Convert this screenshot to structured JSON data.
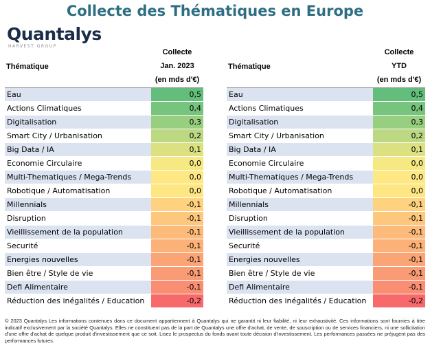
{
  "title": "Collecte des Thématiques en Europe",
  "logo": {
    "wordmark": "Quantalys",
    "subline": "HARVEST GROUP"
  },
  "tables": [
    {
      "theme_header": "Thématique",
      "value_header": [
        "Collecte",
        "Jan. 2023",
        "(en mds d'€)"
      ]
    },
    {
      "theme_header": "Thématique",
      "value_header": [
        "Collecte",
        "YTD",
        "(en mds d'€)"
      ]
    }
  ],
  "chart_data": [
    {
      "type": "table",
      "columns": [
        "Thématique",
        "Collecte Jan. 2023 (en mds d'€)"
      ],
      "rows": [
        [
          "Eau",
          "0,5"
        ],
        [
          "Actions Climatiques",
          "0,4"
        ],
        [
          "Digitalisation",
          "0,3"
        ],
        [
          "Smart City / Urbanisation",
          "0,2"
        ],
        [
          "Big Data / IA",
          "0,1"
        ],
        [
          "Economie Circulaire",
          "0,0"
        ],
        [
          "Multi-Thematiques / Mega-Trends",
          "0,0"
        ],
        [
          "Robotique / Automatisation",
          "0,0"
        ],
        [
          "Millennials",
          "-0,1"
        ],
        [
          "Disruption",
          "-0,1"
        ],
        [
          "Vieillissement de la population",
          "-0,1"
        ],
        [
          "Securité",
          "-0,1"
        ],
        [
          "Energies nouvelles",
          "-0,1"
        ],
        [
          "Bien être / Style de vie",
          "-0,1"
        ],
        [
          "Defi Alimentaire",
          "-0,1"
        ],
        [
          "Réduction des inégalités / Education",
          "-0,2"
        ]
      ],
      "cell_colors": [
        "#63be7b",
        "#76c47d",
        "#98ce80",
        "#bcd882",
        "#dbe081",
        "#f6e883",
        "#fde884",
        "#fee683",
        "#fed27f",
        "#fdc87d",
        "#fcbb7a",
        "#fbb178",
        "#fba576",
        "#f99b74",
        "#f98e72",
        "#f8696b"
      ]
    },
    {
      "type": "table",
      "columns": [
        "Thématique",
        "Collecte YTD (en mds d'€)"
      ],
      "rows": [
        [
          "Eau",
          "0,5"
        ],
        [
          "Actions Climatiques",
          "0,4"
        ],
        [
          "Digitalisation",
          "0,3"
        ],
        [
          "Smart City / Urbanisation",
          "0,2"
        ],
        [
          "Big Data / IA",
          "0,1"
        ],
        [
          "Economie Circulaire",
          "0,0"
        ],
        [
          "Multi-Thematiques / Mega-Trends",
          "0,0"
        ],
        [
          "Robotique / Automatisation",
          "0,0"
        ],
        [
          "Millennials",
          "-0,1"
        ],
        [
          "Disruption",
          "-0,1"
        ],
        [
          "Vieillissement de la population",
          "-0,1"
        ],
        [
          "Securité",
          "-0,1"
        ],
        [
          "Energies nouvelles",
          "-0,1"
        ],
        [
          "Bien être / Style de vie",
          "-0,1"
        ],
        [
          "Defi Alimentaire",
          "-0,1"
        ],
        [
          "Réduction des inégalités / Education",
          "-0,2"
        ]
      ],
      "cell_colors": [
        "#63be7b",
        "#76c47d",
        "#98ce80",
        "#bcd882",
        "#dbe081",
        "#f6e883",
        "#fde884",
        "#fee683",
        "#fed27f",
        "#fdc87d",
        "#fcbb7a",
        "#fbb178",
        "#fba576",
        "#f99b74",
        "#f98e72",
        "#f8696b"
      ]
    }
  ],
  "footer": "© 2023 Quantalys Les informations contenues dans ce document appartiennent à Quantalys qui ne garantit ni leur fiabilité, ni leur exhaustivité. Ces informations sont fournies à titre indicatif exclusivement par la société Quantalys. Elles ne constituent pas de la part de Quantalys une offre d'achat, de vente, de souscription ou de services financiers, ni une sollicitation d'une offre d'achat de quelque produit d'investissement que ce soit. Lisez le prospectus du fonds avant toute décision d'investissement. Les performances passées ne préjugent pas des performances futures."
}
